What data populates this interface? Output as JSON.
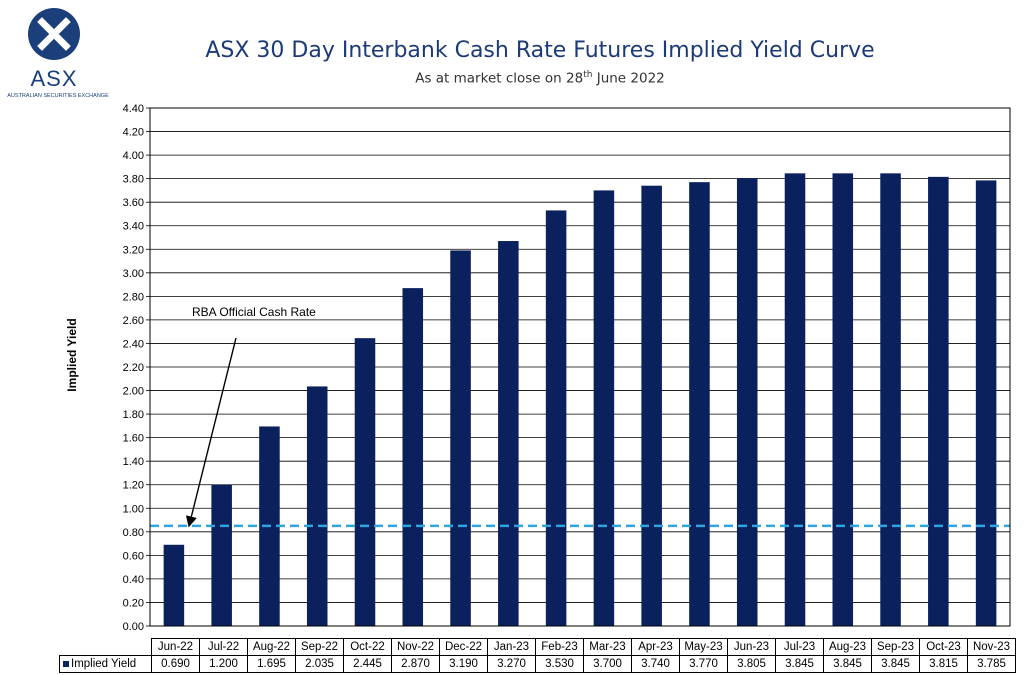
{
  "header": {
    "logo_text": "ASX",
    "logo_subtext": "AUSTRALIAN SECURITIES EXCHANGE",
    "title": "ASX 30 Day Interbank Cash Rate Futures Implied Yield Curve",
    "subtitle_prefix": "As at market close on 28",
    "subtitle_sup": "th",
    "subtitle_suffix": " June 2022"
  },
  "colors": {
    "bar": "#0a215e",
    "reference_line": "#2fa5e0",
    "title": "#1c3a78"
  },
  "chart_data": {
    "type": "bar",
    "title": "ASX 30 Day Interbank Cash Rate Futures Implied Yield Curve",
    "xlabel": "",
    "ylabel": "Implied Yield",
    "ylim": [
      0,
      4.4
    ],
    "ytick_step": 0.2,
    "grid": true,
    "categories": [
      "Jun-22",
      "Jul-22",
      "Aug-22",
      "Sep-22",
      "Oct-22",
      "Nov-22",
      "Dec-22",
      "Jan-23",
      "Feb-23",
      "Mar-23",
      "Apr-23",
      "May-23",
      "Jun-23",
      "Jul-23",
      "Aug-23",
      "Sep-23",
      "Oct-23",
      "Nov-23"
    ],
    "series": [
      {
        "name": "Implied Yield",
        "values": [
          0.69,
          1.2,
          1.695,
          2.035,
          2.445,
          2.87,
          3.19,
          3.27,
          3.53,
          3.7,
          3.74,
          3.77,
          3.805,
          3.845,
          3.845,
          3.845,
          3.815,
          3.785
        ],
        "value_labels": [
          "0.690",
          "1.200",
          "1.695",
          "2.035",
          "2.445",
          "2.870",
          "3.190",
          "3.270",
          "3.530",
          "3.700",
          "3.740",
          "3.770",
          "3.805",
          "3.845",
          "3.845",
          "3.845",
          "3.815",
          "3.785"
        ]
      }
    ],
    "reference_line": {
      "value": 0.85,
      "style": "dashed"
    },
    "annotation": {
      "text": "RBA Official Cash Rate",
      "points_to": 0.85
    },
    "legend": "data-table"
  }
}
